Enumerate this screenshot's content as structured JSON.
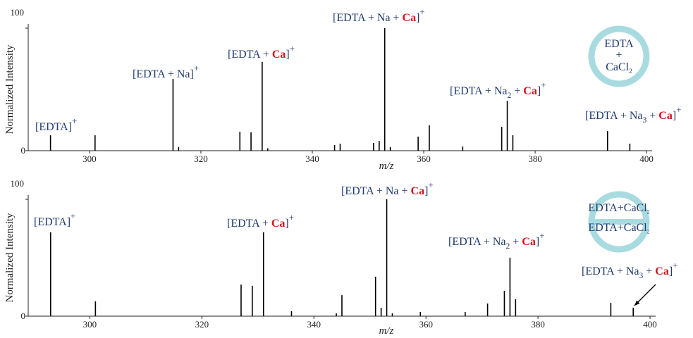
{
  "chart_data": [
    {
      "type": "stem",
      "color": "#000000",
      "x": [
        293,
        301,
        315,
        316,
        327,
        329,
        331,
        332,
        344,
        345,
        351,
        352,
        353,
        354,
        359,
        361,
        367,
        374,
        375,
        376,
        393,
        397
      ],
      "values": [
        12.6,
        12.6,
        58.6,
        3,
        15.5,
        15,
        72.4,
        2,
        4.6,
        5.7,
        6.3,
        8,
        100,
        3,
        11.5,
        20.7,
        3.4,
        19.5,
        40.8,
        12.6,
        16,
        5.7
      ],
      "xlim": [
        289,
        401
      ],
      "xticks": [
        300,
        320,
        340,
        360,
        380,
        400
      ],
      "ylim": [
        0,
        100
      ],
      "yticks": [
        0,
        100
      ],
      "xlabel": "m/z",
      "ylabel": "Normalized Intensity",
      "annotations": [
        [
          {
            "t": "[EDTA]"
          },
          {
            "t": "+",
            "style": "sup"
          }
        ],
        [
          {
            "t": "[EDTA + Na]"
          },
          {
            "t": "+",
            "style": "sup"
          }
        ],
        [
          {
            "t": "[EDTA + "
          },
          {
            "t": "Ca",
            "style": "red"
          },
          {
            "t": "]"
          },
          {
            "t": "+",
            "style": "sup"
          }
        ],
        [
          {
            "t": "[EDTA + Na + "
          },
          {
            "t": "Ca",
            "style": "red"
          },
          {
            "t": "]"
          },
          {
            "t": "+",
            "style": "sup"
          }
        ],
        [
          {
            "t": "[EDTA + Na"
          },
          {
            "t": "2",
            "style": "sub"
          },
          {
            "t": " + "
          },
          {
            "t": "Ca",
            "style": "red"
          },
          {
            "t": "]"
          },
          {
            "t": "+",
            "style": "sup"
          }
        ],
        [
          {
            "t": "[EDTA + Na"
          },
          {
            "t": "3",
            "style": "sub"
          },
          {
            "t": " + "
          },
          {
            "t": "Ca",
            "style": "red"
          },
          {
            "t": "]"
          },
          {
            "t": "+",
            "style": "sup"
          }
        ]
      ],
      "inset": [
        [
          {
            "t": "EDTA"
          }
        ],
        [
          {
            "t": "+"
          }
        ],
        [
          {
            "t": "CaCl"
          },
          {
            "t": "2",
            "style": "sub"
          }
        ]
      ]
    },
    {
      "type": "stem",
      "color": "#000000",
      "x": [
        293,
        301,
        327,
        329,
        331,
        336,
        344,
        345,
        351,
        352,
        353,
        354,
        359,
        367,
        371,
        374,
        375,
        376,
        393,
        397
      ],
      "values": [
        71.7,
        12.7,
        27,
        26,
        71.7,
        4.2,
        2.4,
        18,
        33.7,
        7.2,
        100,
        2.4,
        3.6,
        3.6,
        10.8,
        21.7,
        50,
        14.5,
        11.4,
        7.2
      ],
      "xlim": [
        289,
        401
      ],
      "xticks": [
        300,
        320,
        340,
        360,
        380,
        400
      ],
      "ylim": [
        0,
        100
      ],
      "yticks": [
        0,
        100
      ],
      "xlabel": "m/z",
      "ylabel": "Normalized Intensity",
      "annotations": [
        [
          {
            "t": "[EDTA]"
          },
          {
            "t": "+",
            "style": "sup"
          }
        ],
        [
          {
            "t": "[EDTA + "
          },
          {
            "t": "Ca",
            "style": "red"
          },
          {
            "t": "]"
          },
          {
            "t": "+",
            "style": "sup"
          }
        ],
        [
          {
            "t": "[EDTA + Na + "
          },
          {
            "t": "Ca",
            "style": "red"
          },
          {
            "t": "]"
          },
          {
            "t": "+",
            "style": "sup"
          }
        ],
        [
          {
            "t": "[EDTA + Na"
          },
          {
            "t": "2",
            "style": "sub"
          },
          {
            "t": " + "
          },
          {
            "t": "Ca",
            "style": "red"
          },
          {
            "t": "]"
          },
          {
            "t": "+",
            "style": "sup"
          }
        ],
        [
          {
            "t": "[EDTA + Na"
          },
          {
            "t": "3",
            "style": "sub"
          },
          {
            "t": " + "
          },
          {
            "t": "Ca",
            "style": "red"
          },
          {
            "t": "]"
          },
          {
            "t": "+",
            "style": "sup"
          }
        ]
      ],
      "inset": [
        [
          {
            "t": "EDTA+CaCl"
          },
          {
            "t": "2",
            "style": "sub"
          }
        ],
        [
          {
            "t": "EDTA+CaCl"
          },
          {
            "t": "2",
            "style": "sub"
          }
        ]
      ]
    }
  ]
}
